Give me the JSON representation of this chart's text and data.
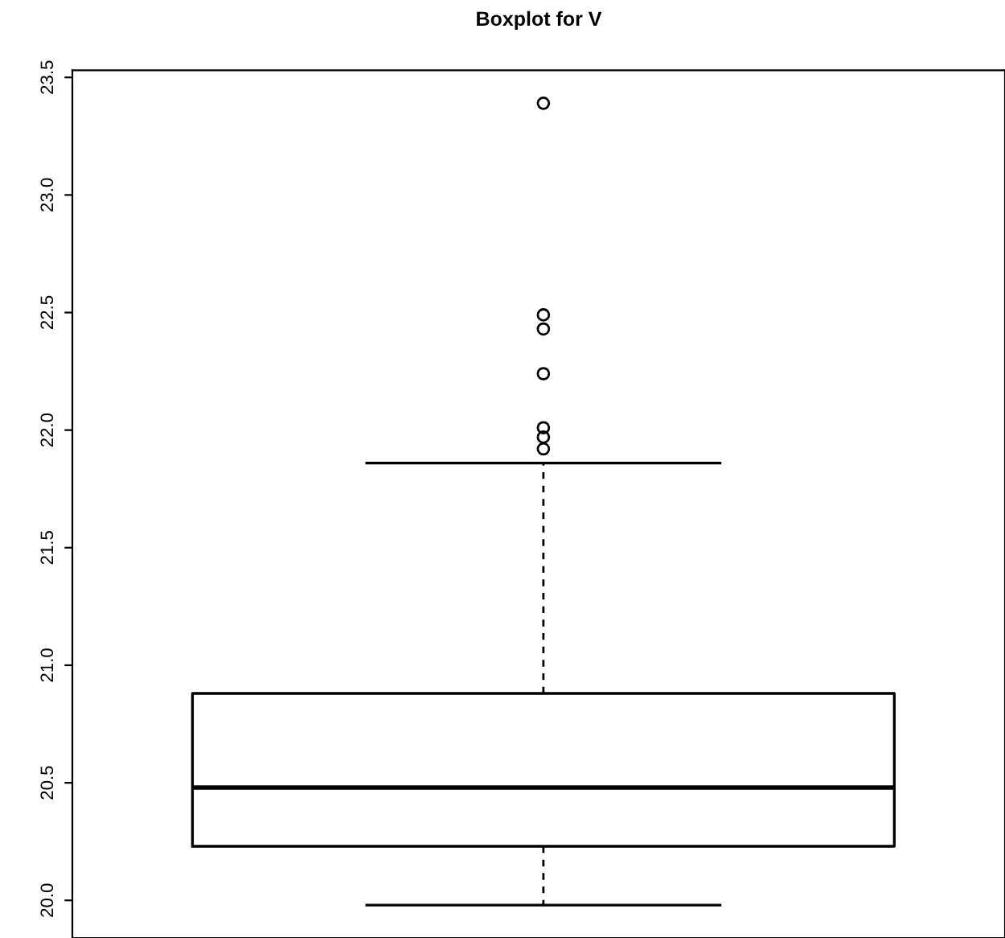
{
  "chart_data": {
    "type": "box",
    "title": "Boxplot for V",
    "categories": [
      null
    ],
    "boxes": [
      {
        "low": 19.98,
        "q1": 20.23,
        "median": 20.48,
        "q3": 20.88,
        "high": 21.86,
        "outliers": [
          23.39,
          22.49,
          22.43,
          22.24,
          22.01,
          21.97,
          21.92
        ]
      }
    ],
    "ylim": [
      19.84,
      23.53
    ],
    "yticks": [
      {
        "value": 20,
        "label": "20.0"
      },
      {
        "value": 20.5,
        "label": "20.5"
      },
      {
        "value": 21,
        "label": "21.0"
      },
      {
        "value": 21.5,
        "label": "21.5"
      },
      {
        "value": 22,
        "label": "22.0"
      },
      {
        "value": 22.5,
        "label": "22.5"
      },
      {
        "value": 23,
        "label": "23.0"
      },
      {
        "value": 23.5,
        "label": "23.5"
      }
    ],
    "tick_labels": "y",
    "grid": false
  }
}
